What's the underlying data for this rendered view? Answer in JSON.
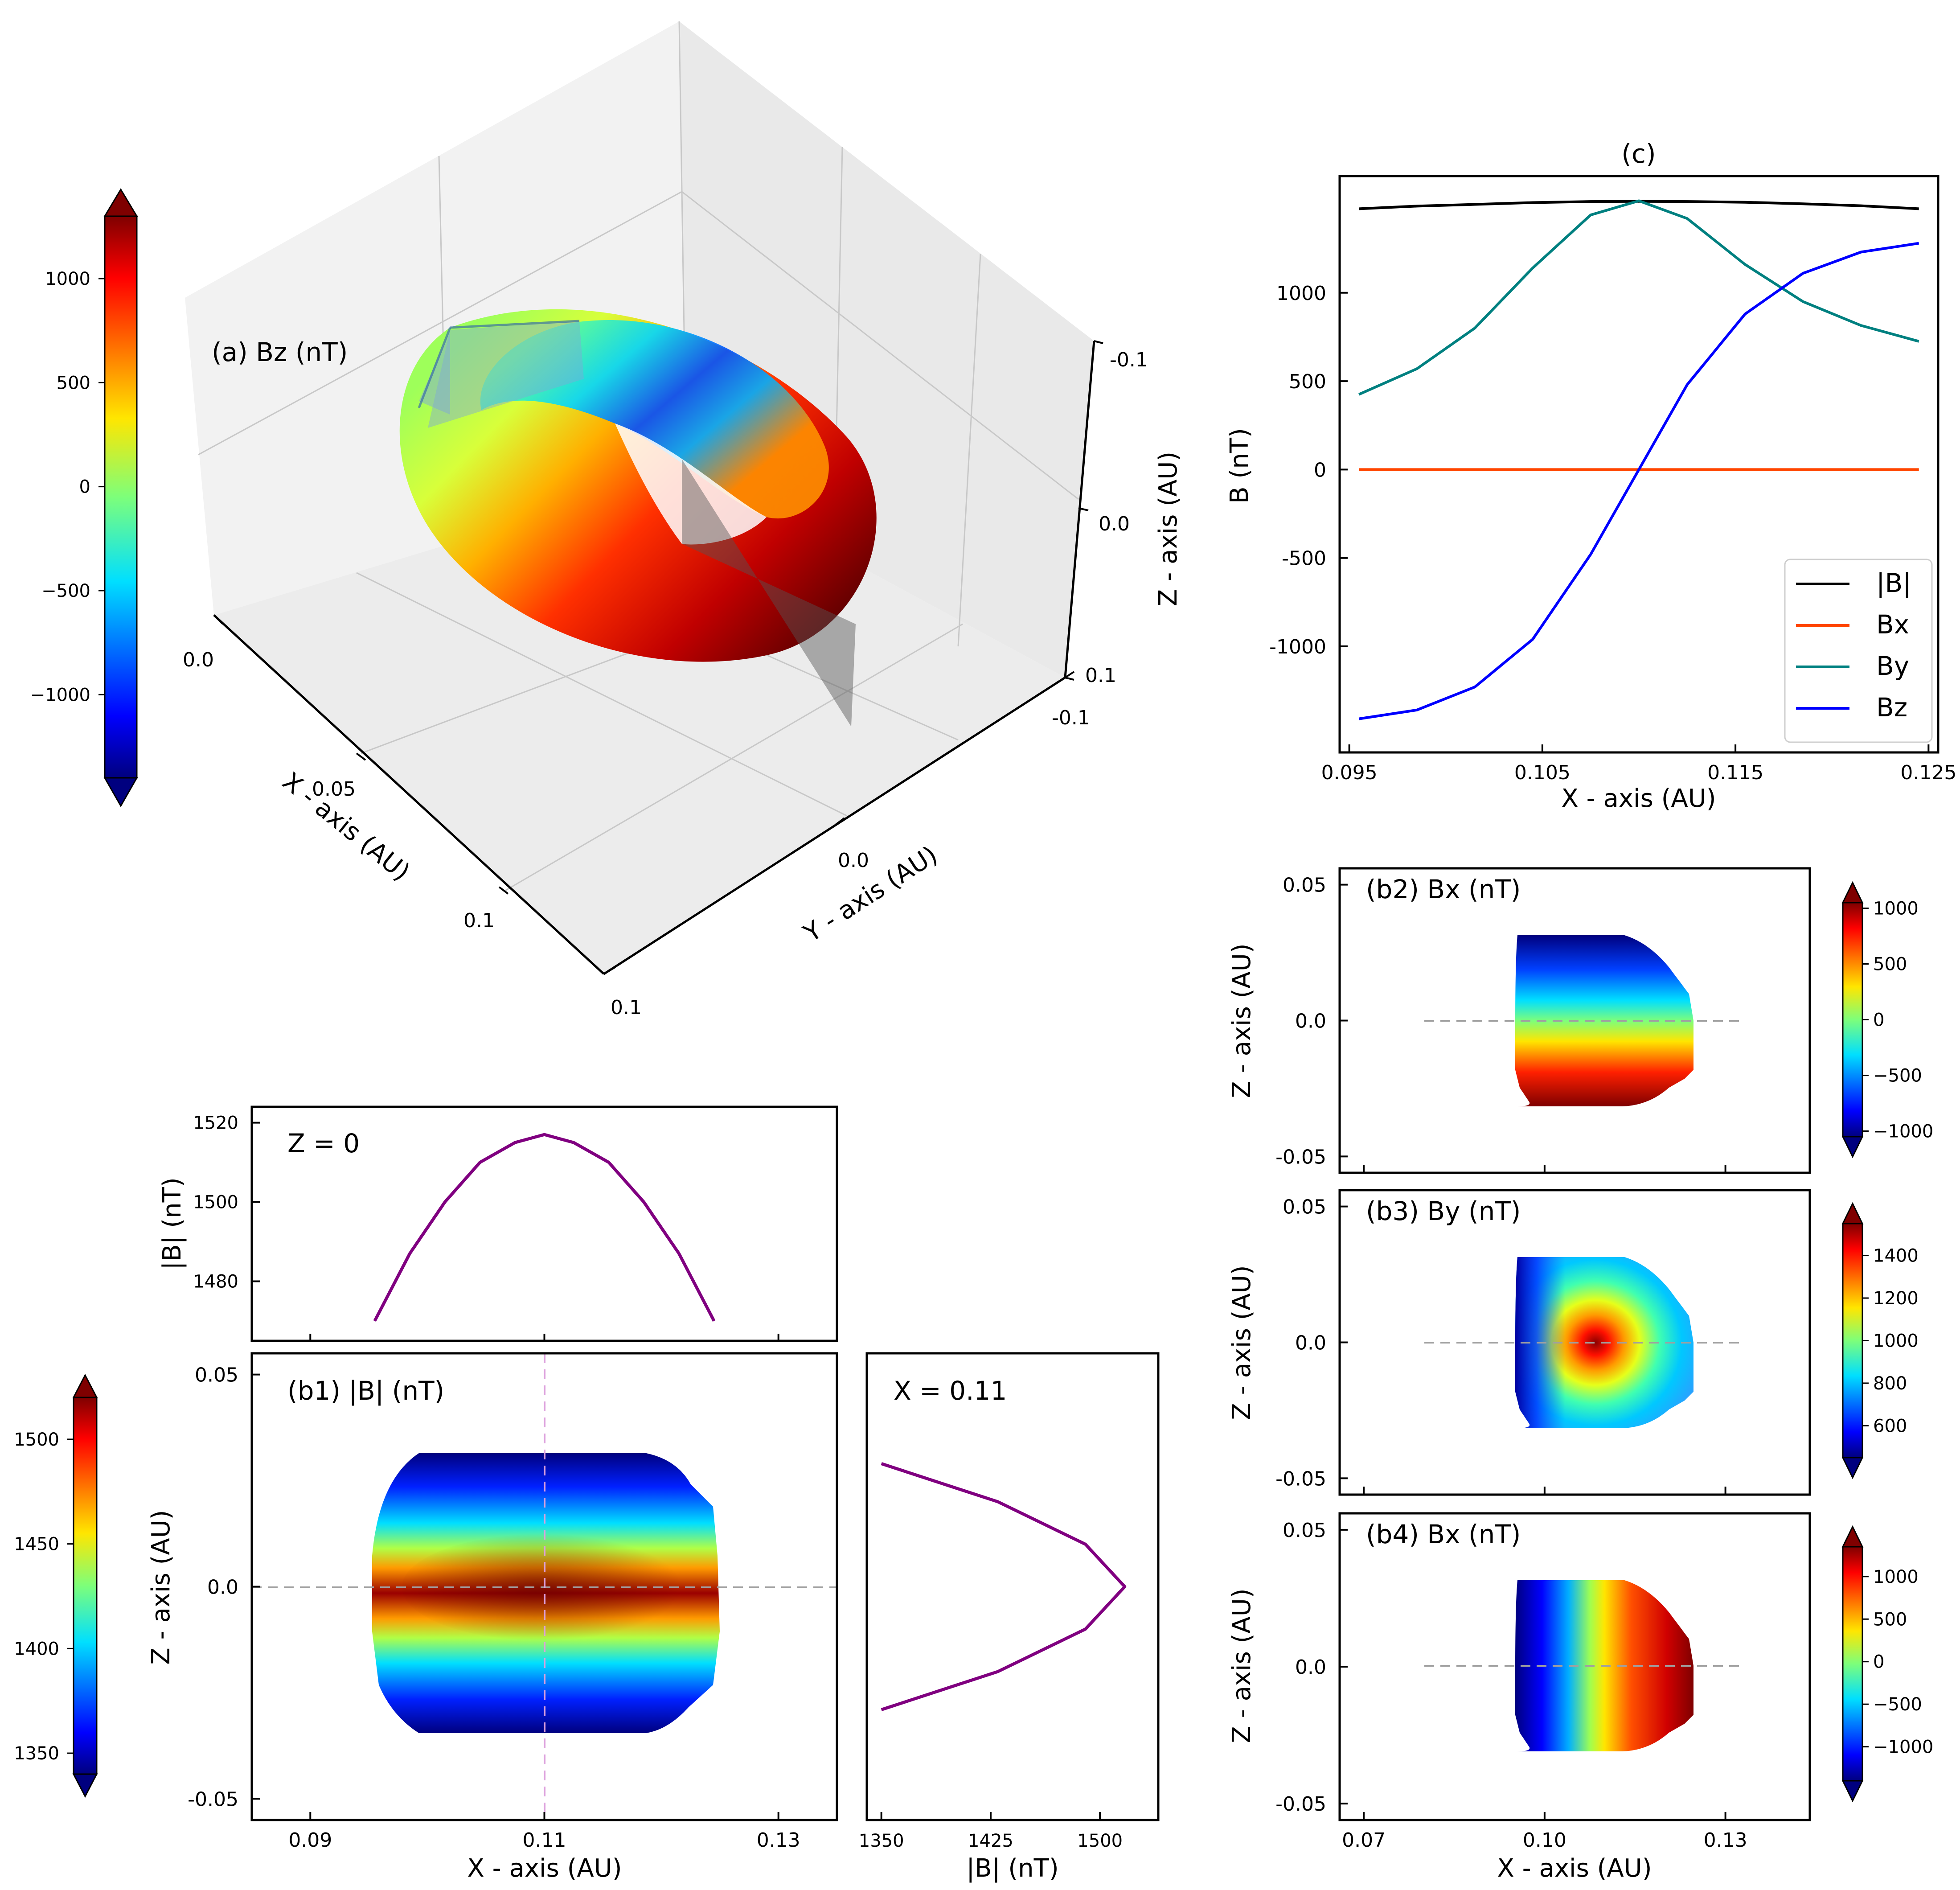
{
  "figure_labels": {
    "a": "(a) Bz (nT)",
    "c": "(c)",
    "b1": "(b1) |B| (nT)",
    "b2": "(b2) Bx (nT)",
    "b3": "(b3) By (nT)",
    "b4": "(b4) Bx (nT)",
    "zcut": "Z = 0",
    "xcut": "X = 0.11"
  },
  "colors": {
    "absB": "#000000",
    "Bx": "#ff4500",
    "By": "#008080",
    "Bz": "#0000ff",
    "cut_line": "#800080",
    "dashed": "#a0a0a0",
    "dashed_vertical": "#dda0dd"
  },
  "chart_data": [
    {
      "id": "a",
      "type": "scatter3d",
      "title": "(a) Bz (nT)",
      "axes": {
        "x": {
          "label": "X - axis (AU)",
          "ticks": [
            "0.0",
            "0.05",
            "0.1"
          ]
        },
        "y": {
          "label": "Y - axis (AU)",
          "ticks": [
            "-0.1",
            "0.0",
            "0.1"
          ]
        },
        "z": {
          "label": "Z - axis (AU)",
          "ticks": [
            "-0.1",
            "0.0",
            "0.1"
          ]
        }
      },
      "colorbar": {
        "ticks": [
          "1000",
          "500",
          "0",
          "−500",
          "−1000"
        ],
        "range": [
          -1400,
          1300
        ]
      }
    },
    {
      "id": "c",
      "type": "line",
      "title": "(c)",
      "xlabel": "X - axis (AU)",
      "ylabel": "B (nT)",
      "xlim": [
        0.0945,
        0.1255
      ],
      "ylim": [
        -1600,
        1660
      ],
      "xticks": [
        "0.095",
        "0.105",
        "0.115",
        "0.125"
      ],
      "yticks": [
        "1000",
        "500",
        "0",
        "-500",
        "-1000"
      ],
      "x": [
        0.0955,
        0.0985,
        0.1015,
        0.1045,
        0.1075,
        0.11,
        0.1125,
        0.1155,
        0.1185,
        0.1215,
        0.1245
      ],
      "series": [
        {
          "name": "|B|",
          "values": [
            1475,
            1490,
            1500,
            1510,
            1516,
            1517,
            1516,
            1512,
            1503,
            1492,
            1475
          ]
        },
        {
          "name": "Bx",
          "values": [
            0,
            0,
            0,
            0,
            0,
            0,
            0,
            0,
            0,
            0,
            0
          ]
        },
        {
          "name": "By",
          "values": [
            425,
            570,
            800,
            1140,
            1440,
            1520,
            1420,
            1160,
            950,
            815,
            725
          ]
        },
        {
          "name": "Bz",
          "values": [
            -1410,
            -1360,
            -1230,
            -960,
            -480,
            0,
            480,
            880,
            1110,
            1230,
            1280
          ]
        }
      ],
      "legend": {
        "position": "lower-right",
        "entries": [
          "|B|",
          "Bx",
          "By",
          "Bz"
        ]
      }
    },
    {
      "id": "zcut",
      "type": "line",
      "title": "Z = 0",
      "ylabel": "|B| (nT)",
      "xlim": [
        0.085,
        0.135
      ],
      "ylim": [
        1465,
        1524
      ],
      "yticks": [
        "1520",
        "1500",
        "1480"
      ],
      "x": [
        0.0955,
        0.0985,
        0.1015,
        0.1045,
        0.1075,
        0.11,
        0.1125,
        0.1155,
        0.1185,
        0.1215,
        0.1245
      ],
      "values": [
        1470,
        1487,
        1500,
        1510,
        1515,
        1517,
        1515,
        1510,
        1500,
        1487,
        1470
      ]
    },
    {
      "id": "b1",
      "type": "heatmap",
      "title": "(b1) |B| (nT)",
      "xlabel": "X - axis (AU)",
      "ylabel": "Z - axis (AU)",
      "xlim": [
        0.085,
        0.135
      ],
      "ylim": [
        -0.055,
        0.055
      ],
      "xticks": [
        "0.09",
        "0.11",
        "0.13"
      ],
      "yticks": [
        "0.05",
        "0.0",
        "-0.05"
      ],
      "colorbar": {
        "ticks": [
          "1500",
          "1450",
          "1400",
          "1350"
        ],
        "range": [
          1340,
          1520
        ]
      }
    },
    {
      "id": "xcut",
      "type": "line",
      "title": "X = 0.11",
      "xlabel": "|B| (nT)",
      "xlim": [
        1340,
        1540
      ],
      "ylim": [
        -0.055,
        0.055
      ],
      "xticks": [
        "1350",
        "1425",
        "1500"
      ],
      "z": [
        -0.029,
        -0.02,
        -0.01,
        0.0,
        0.01,
        0.02,
        0.029
      ],
      "values": [
        1350,
        1430,
        1490,
        1517,
        1490,
        1430,
        1350
      ]
    },
    {
      "id": "b2",
      "type": "heatmap",
      "title": "(b2) Bx (nT)",
      "ylabel": "Z - axis (AU)",
      "xlim": [
        0.066,
        0.144
      ],
      "ylim": [
        -0.056,
        0.056
      ],
      "yticks": [
        "0.05",
        "0.0",
        "-0.05"
      ],
      "colorbar": {
        "ticks": [
          "1000",
          "500",
          "0",
          "−500",
          "−1000"
        ],
        "range": [
          -1050,
          1050
        ]
      }
    },
    {
      "id": "b3",
      "type": "heatmap",
      "title": "(b3) By (nT)",
      "ylabel": "Z - axis (AU)",
      "xlim": [
        0.066,
        0.144
      ],
      "ylim": [
        -0.056,
        0.056
      ],
      "yticks": [
        "0.05",
        "0.0",
        "-0.05"
      ],
      "colorbar": {
        "ticks": [
          "1400",
          "1200",
          "1000",
          "800",
          "600"
        ],
        "range": [
          450,
          1550
        ]
      }
    },
    {
      "id": "b4",
      "type": "heatmap",
      "title": "(b4) Bx (nT)",
      "xlabel": "X - axis (AU)",
      "ylabel": "Z - axis (AU)",
      "xlim": [
        0.066,
        0.144
      ],
      "ylim": [
        -0.056,
        0.056
      ],
      "xticks": [
        "0.07",
        "0.10",
        "0.13"
      ],
      "yticks": [
        "0.05",
        "0.0",
        "-0.05"
      ],
      "colorbar": {
        "ticks": [
          "1000",
          "500",
          "0",
          "−500",
          "−1000"
        ],
        "range": [
          -1400,
          1350
        ]
      }
    }
  ]
}
